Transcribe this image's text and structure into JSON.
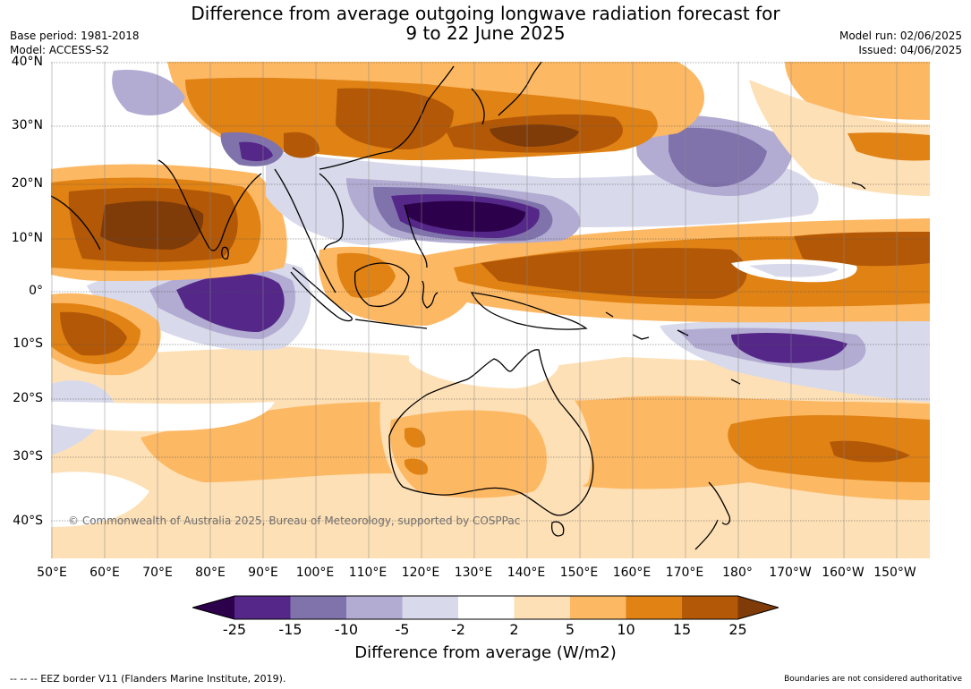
{
  "header": {
    "title_line1": "Difference from average outgoing longwave radiation forecast for",
    "title_line2": "9 to 22 June 2025",
    "base_period": "Base period: 1981-2018",
    "model": "Model: ACCESS-S2",
    "model_run": "Model run: 02/06/2025",
    "issued": "Issued: 04/06/2025"
  },
  "map": {
    "region": "Indo-Pacific, 50°E to 145°W, 46°S to 40°N",
    "projection": "equirectangular",
    "lon_range": [
      50,
      215
    ],
    "lat_range": [
      -46,
      40
    ],
    "lat_labels": [
      "40°N",
      "30°N",
      "20°N",
      "10°N",
      "0°",
      "10°S",
      "20°S",
      "30°S",
      "40°S"
    ],
    "lon_labels": [
      "50°E",
      "60°E",
      "70°E",
      "80°E",
      "90°E",
      "100°E",
      "110°E",
      "120°E",
      "130°E",
      "140°E",
      "150°E",
      "160°E",
      "170°E",
      "180°",
      "170°W",
      "160°W",
      "150°W"
    ],
    "copyright": "© Commonwealth of Australia 2025, Bureau of Meteorology, supported by COSPPac",
    "gridlines": true
  },
  "colorbar": {
    "label": "Difference from average (W/m2)",
    "ticks": [
      "-25",
      "-15",
      "-10",
      "-5",
      "-2",
      "2",
      "5",
      "10",
      "15",
      "25"
    ],
    "colors": [
      "#2d004b",
      "#542788",
      "#8073ac",
      "#b2abd2",
      "#d8daeb",
      "#ffffff",
      "#fee0b6",
      "#fdb863",
      "#e08214",
      "#b35806",
      "#7f3b08"
    ]
  },
  "footer": {
    "legend_note": "--  --  -- EEZ border V11 (Flanders Marine Institute, 2019).",
    "disclaimer": "Boundaries are not considered authoritative"
  }
}
